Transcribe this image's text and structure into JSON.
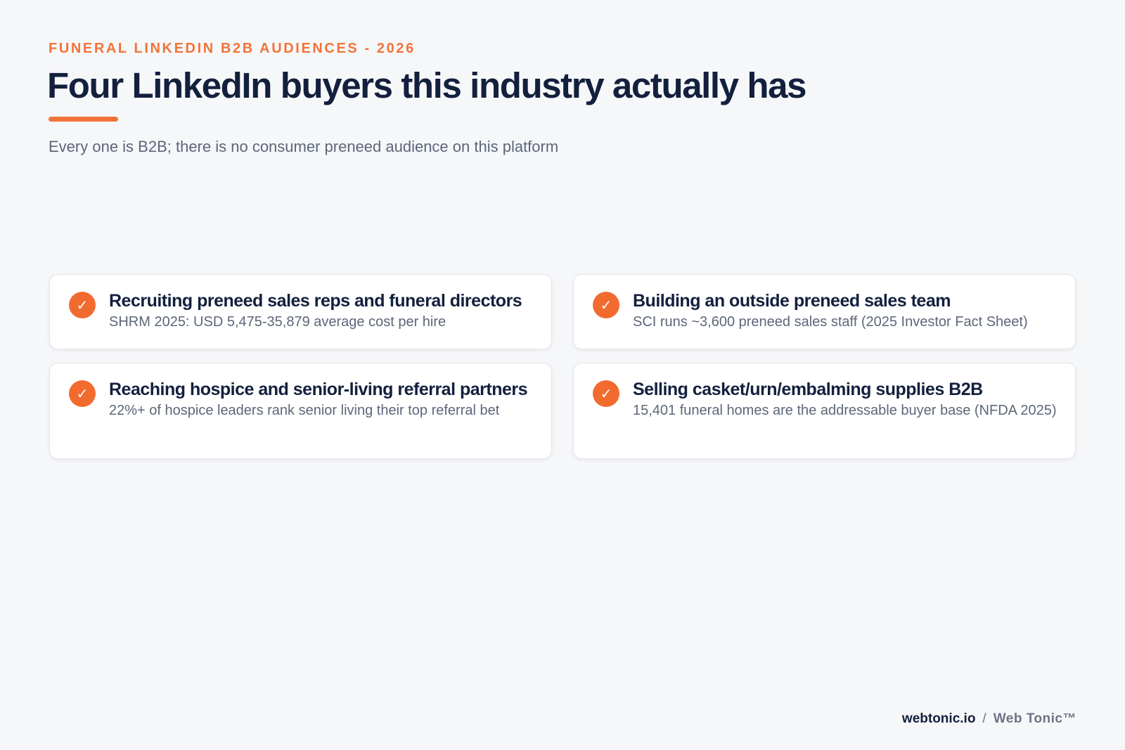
{
  "header": {
    "eyebrow": "FUNERAL LINKEDIN B2B AUDIENCES - 2026",
    "title": "Four LinkedIn buyers this industry actually has",
    "subtitle": "Every one is B2B; there is no consumer preneed audience on this platform"
  },
  "cards": [
    {
      "icon": "check-icon",
      "title": "Recruiting preneed sales reps and funeral directors",
      "desc": "SHRM 2025: USD 5,475-35,879 average cost per hire"
    },
    {
      "icon": "check-icon",
      "title": "Building an outside preneed sales team",
      "desc": "SCI runs ~3,600 preneed sales staff (2025 Investor Fact Sheet)"
    },
    {
      "icon": "check-icon",
      "title": "Reaching hospice and senior-living referral partners",
      "desc": "22%+ of hospice leaders rank senior living their top referral bet"
    },
    {
      "icon": "check-icon",
      "title": "Selling casket/urn/embalming supplies B2B",
      "desc": "15,401 funeral homes are the addressable buyer base (NFDA 2025)"
    }
  ],
  "check_glyph": "✓",
  "footer": {
    "site": "webtonic.io",
    "separator": "/",
    "brand": "Web Tonic™"
  },
  "colors": {
    "accent": "#f0743a",
    "heading": "#13203d",
    "muted": "#5d6679",
    "background": "#f6f7f9"
  }
}
